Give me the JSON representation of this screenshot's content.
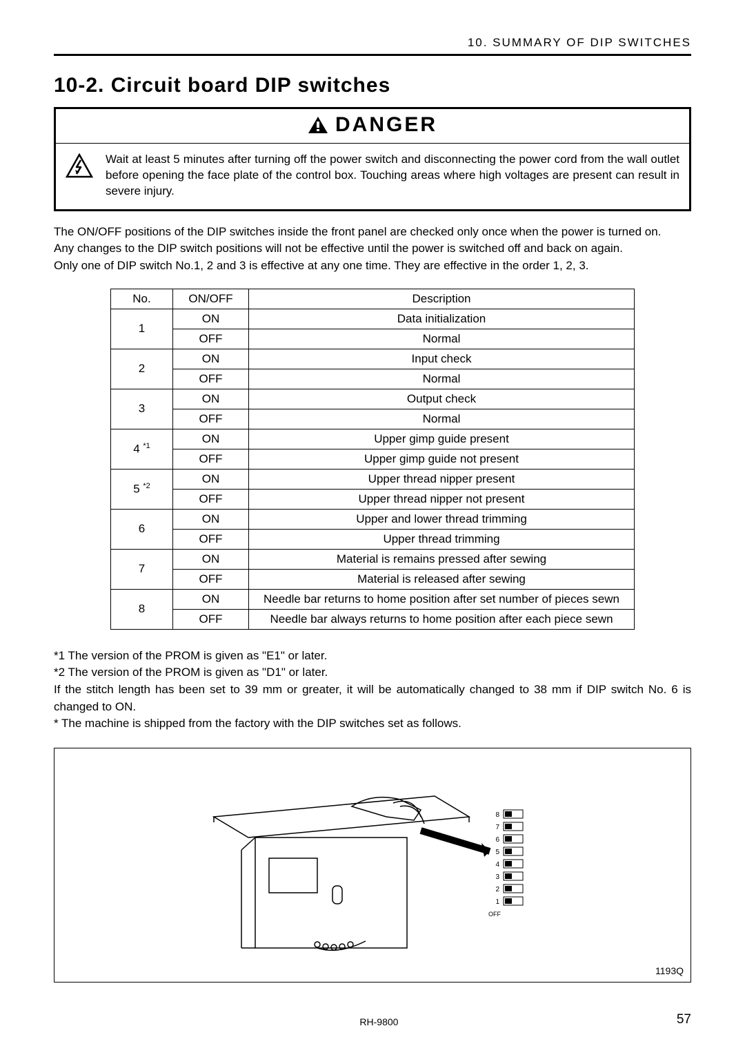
{
  "chapter_label": "10. SUMMARY OF DIP SWITCHES",
  "section_title": "10-2. Circuit board DIP switches",
  "danger": {
    "title": "DANGER",
    "text": "Wait at least 5 minutes after turning off the power switch and disconnecting the power cord from the wall outlet before opening the face plate of the control box. Touching areas where high voltages are present can result in severe injury."
  },
  "intro": [
    "The ON/OFF positions of the DIP switches inside the front panel are checked only once when the power is turned on.",
    "Any changes to the DIP switch positions will not be effective until the power is switched off and back on again.",
    "Only one of DIP switch No.1, 2 and 3 is effective at any one time. They are effective in the order 1, 2, 3."
  ],
  "table": {
    "headers": [
      "No.",
      "ON/OFF",
      "Description"
    ],
    "rows": [
      {
        "no": "1",
        "sup": "",
        "on": "Data initialization",
        "off": "Normal"
      },
      {
        "no": "2",
        "sup": "",
        "on": "Input check",
        "off": "Normal"
      },
      {
        "no": "3",
        "sup": "",
        "on": "Output check",
        "off": "Normal"
      },
      {
        "no": "4",
        "sup": "*1",
        "on": "Upper gimp guide present",
        "off": "Upper gimp guide not present"
      },
      {
        "no": "5",
        "sup": "*2",
        "on": "Upper thread nipper present",
        "off": "Upper thread nipper not present"
      },
      {
        "no": "6",
        "sup": "",
        "on": "Upper and lower thread trimming",
        "off": "Upper thread trimming"
      },
      {
        "no": "7",
        "sup": "",
        "on": "Material is remains pressed after sewing",
        "off": "Material is released after sewing"
      },
      {
        "no": "8",
        "sup": "",
        "on": "Needle bar returns to home position after set number of pieces sewn",
        "off": "Needle bar always returns to home position after each piece sewn"
      }
    ],
    "onoff_on": "ON",
    "onoff_off": "OFF"
  },
  "footnotes": [
    "*1   The version of the PROM is given as \"E1\" or later.",
    "*2   The version of the PROM is given as \"D1\" or later.",
    "If the stitch length has been set to 39 mm or greater, it will be automatically changed to 38 mm if DIP switch No. 6 is changed to ON.",
    "*  The machine is shipped from the factory with the DIP switches set as follows."
  ],
  "illustration": {
    "label": "1193Q",
    "dip_default": {
      "labels": [
        "1",
        "2",
        "3",
        "4",
        "5",
        "6",
        "7",
        "8"
      ],
      "off_label": "OFF",
      "positions": [
        "OFF",
        "OFF",
        "OFF",
        "OFF",
        "OFF",
        "OFF",
        "OFF",
        "OFF"
      ]
    }
  },
  "footer": {
    "model": "RH-9800",
    "page": "57"
  },
  "colors": {
    "text": "#000000",
    "background": "#ffffff",
    "border": "#000000"
  }
}
